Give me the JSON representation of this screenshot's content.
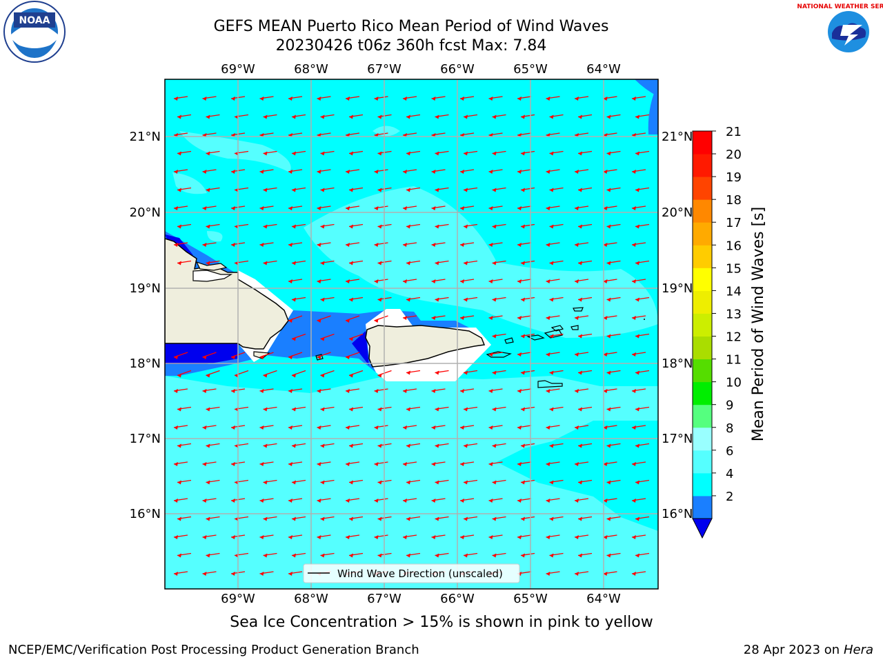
{
  "title_line1": "GEFS MEAN Puerto Rico Mean Period of Wind Waves",
  "title_line2": "20230426 t06z 360h fcst   Max: 7.84",
  "lon_labels": [
    "69°W",
    "68°W",
    "67°W",
    "66°W",
    "65°W",
    "64°W"
  ],
  "lat_labels": [
    "21°N",
    "20°N",
    "19°N",
    "18°N",
    "17°N",
    "16°N"
  ],
  "legend_label": "Wind Wave Direction (unscaled)",
  "note": "Sea Ice Concentration > 15% is shown in pink to yellow",
  "footer_left": "NCEP/EMC/Verification Post Processing Product Generation Branch",
  "footer_date": "28 Apr 2023 on",
  "footer_machine": "Hera",
  "colorbar": {
    "label": "Mean Period of Wind Waves [s]",
    "ticks": [
      "21",
      "20",
      "19",
      "18",
      "17",
      "16",
      "15",
      "14",
      "13",
      "12",
      "11",
      "10",
      "9",
      "8",
      "6",
      "4",
      "2"
    ],
    "colors": [
      "#0000ee",
      "#1a7fff",
      "#00ffff",
      "#55ffff",
      "#99ffff",
      "#55ff7f",
      "#00ee00",
      "#55dd00",
      "#aadd00",
      "#ccee00",
      "#eeee00",
      "#ffff00",
      "#ffcc00",
      "#ffaa00",
      "#ff8800",
      "#ff4400",
      "#ff1a00",
      "#ff0000"
    ]
  },
  "logos": {
    "noaa": "NOAA",
    "nws": "NATIONAL WEATHER SERVICE"
  },
  "arrow_color": "#ff0000"
}
